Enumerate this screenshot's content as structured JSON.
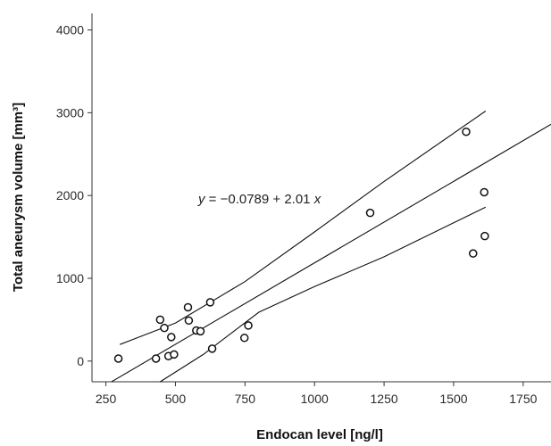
{
  "chart_data": {
    "type": "scatter",
    "title": "",
    "xlabel": "Endocan level [ng/l]",
    "ylabel": "Total aneurysm volume [mm³]",
    "xlim": [
      200,
      1850
    ],
    "ylim": [
      -250,
      4200
    ],
    "x_ticks": [
      250,
      500,
      750,
      1000,
      1250,
      1500,
      1750
    ],
    "y_ticks": [
      0,
      1000,
      2000,
      3000,
      4000
    ],
    "grid": false,
    "legend": "none",
    "equation": {
      "y_part": "y",
      "eq_part": " = −0.0789 + 2.01",
      "x_part": "x"
    },
    "series": [
      {
        "type": "scatter",
        "x": [
          295,
          430,
          445,
          460,
          475,
          485,
          495,
          545,
          548,
          575,
          590,
          625,
          632,
          748,
          762,
          1200,
          1545,
          1570,
          1610,
          1612
        ],
        "y": [
          30,
          30,
          500,
          400,
          60,
          290,
          80,
          650,
          490,
          370,
          360,
          710,
          150,
          280,
          430,
          1790,
          2770,
          1300,
          2040,
          1510
        ]
      },
      {
        "type": "line",
        "role": "regression",
        "x": [
          270,
          1850
        ],
        "y": [
          -250,
          2860
        ]
      },
      {
        "type": "line",
        "role": "upper-confidence-band",
        "x": [
          300,
          500,
          750,
          1000,
          1250,
          1615
        ],
        "y": [
          200,
          460,
          960,
          1560,
          2170,
          3020
        ]
      },
      {
        "type": "line",
        "role": "lower-confidence-band",
        "x": [
          445,
          600,
          800,
          1000,
          1250,
          1615
        ],
        "y": [
          -250,
          80,
          590,
          900,
          1260,
          1860
        ]
      }
    ]
  },
  "colors": {
    "background": "#ffffff",
    "axis": "#333333",
    "line": "#111111",
    "marker_stroke": "#111111",
    "marker_fill": "#ffffff"
  }
}
